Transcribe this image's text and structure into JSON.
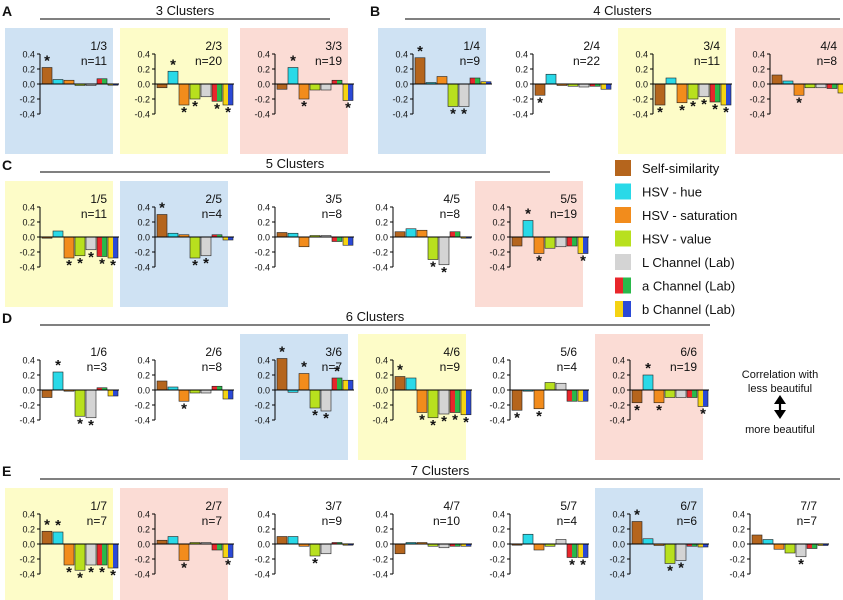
{
  "legend": {
    "items": [
      {
        "label": "Self-similarity",
        "color": "#b5651d",
        "color2": null
      },
      {
        "label": "HSV - hue",
        "color": "#29d9e8",
        "color2": null
      },
      {
        "label": "HSV - saturation",
        "color": "#f28c1c",
        "color2": null
      },
      {
        "label": "HSV - value",
        "color": "#b8e01e",
        "color2": null
      },
      {
        "label": "L Channel (Lab)",
        "color": "#d4d4d4",
        "color2": null
      },
      {
        "label": "a Channel (Lab)",
        "color": "#e8262b",
        "color2": "#2ab84a"
      },
      {
        "label": "b Channel (Lab)",
        "color": "#f5d312",
        "color2": "#2b49d6"
      }
    ],
    "correlation_title_line1": "Correlation with",
    "correlation_title_line2": "less beautiful",
    "correlation_bottom": "more beautiful"
  },
  "colors": {
    "blue_bg": "#cfe2f3",
    "yellow_bg": "#fdfcc8",
    "pink_bg": "#fbdcd5"
  },
  "chart_data": {
    "type": "bar",
    "categories": [
      "Self-similarity",
      "HSV - hue",
      "HSV - saturation",
      "HSV - value",
      "L Channel (Lab)",
      "a Channel (Lab)",
      "b Channel (Lab)"
    ],
    "ylim": [
      -0.4,
      0.4
    ],
    "yticks": [
      "0.4",
      "0.2",
      "0.0",
      "-0.2",
      "-0.4"
    ],
    "sections": [
      {
        "letter": "A",
        "title": "3 Clusters",
        "panels": [
          {
            "label": "1/3",
            "n": "n=11",
            "bg": "blue",
            "values": [
              0.22,
              0.06,
              0.05,
              -0.02,
              -0.02,
              0.07,
              0.0
            ],
            "stars": [
              true,
              false,
              false,
              false,
              false,
              false,
              false
            ]
          },
          {
            "label": "2/3",
            "n": "n=20",
            "bg": "yellow",
            "values": [
              -0.05,
              0.17,
              -0.28,
              -0.2,
              -0.17,
              -0.23,
              -0.28
            ],
            "stars": [
              false,
              true,
              true,
              true,
              false,
              true,
              true
            ]
          },
          {
            "label": "3/3",
            "n": "n=19",
            "bg": "pink",
            "values": [
              -0.07,
              0.22,
              -0.2,
              -0.08,
              -0.08,
              0.05,
              -0.22
            ],
            "stars": [
              false,
              true,
              true,
              false,
              false,
              false,
              true
            ]
          }
        ]
      },
      {
        "letter": "B",
        "title": "4 Clusters",
        "panels": [
          {
            "label": "1/4",
            "n": "n=9",
            "bg": "blue",
            "values": [
              0.35,
              0.02,
              0.1,
              -0.3,
              -0.3,
              0.08,
              0.03
            ],
            "stars": [
              true,
              false,
              false,
              true,
              true,
              false,
              false
            ]
          },
          {
            "label": "2/4",
            "n": "n=22",
            "bg": "none",
            "values": [
              -0.15,
              0.13,
              -0.02,
              -0.03,
              -0.04,
              -0.03,
              -0.07
            ],
            "stars": [
              true,
              false,
              false,
              false,
              false,
              false,
              false
            ]
          },
          {
            "label": "3/4",
            "n": "n=11",
            "bg": "yellow",
            "values": [
              -0.28,
              0.08,
              -0.25,
              -0.2,
              -0.17,
              -0.24,
              -0.28
            ],
            "stars": [
              true,
              false,
              true,
              true,
              true,
              true,
              true
            ]
          },
          {
            "label": "4/4",
            "n": "n=8",
            "bg": "pink",
            "values": [
              0.12,
              0.04,
              -0.15,
              -0.05,
              -0.05,
              -0.06,
              -0.12
            ],
            "stars": [
              false,
              false,
              true,
              false,
              false,
              false,
              false
            ]
          }
        ]
      },
      {
        "letter": "C",
        "title": "5 Clusters",
        "panels": [
          {
            "label": "1/5",
            "n": "n=11",
            "bg": "yellow",
            "values": [
              0.0,
              0.08,
              -0.28,
              -0.25,
              -0.17,
              -0.26,
              -0.28
            ],
            "stars": [
              false,
              false,
              true,
              true,
              true,
              true,
              true
            ]
          },
          {
            "label": "2/5",
            "n": "n=4",
            "bg": "blue",
            "values": [
              0.3,
              0.05,
              0.03,
              -0.28,
              -0.25,
              0.03,
              -0.04
            ],
            "stars": [
              true,
              false,
              false,
              true,
              true,
              false,
              false
            ]
          },
          {
            "label": "3/5",
            "n": "n=8",
            "bg": "none",
            "values": [
              0.06,
              0.05,
              -0.13,
              0.02,
              0.02,
              -0.06,
              -0.11
            ],
            "stars": [
              false,
              false,
              false,
              false,
              false,
              false,
              false
            ]
          },
          {
            "label": "4/5",
            "n": "n=8",
            "bg": "none",
            "values": [
              0.07,
              0.11,
              0.09,
              -0.3,
              -0.37,
              0.07,
              0.0
            ],
            "stars": [
              false,
              false,
              false,
              true,
              true,
              false,
              false
            ]
          },
          {
            "label": "5/5",
            "n": "n=19",
            "bg": "pink",
            "values": [
              -0.12,
              0.22,
              -0.22,
              -0.15,
              -0.13,
              -0.12,
              -0.22
            ],
            "stars": [
              false,
              true,
              true,
              false,
              false,
              false,
              true
            ]
          }
        ]
      },
      {
        "letter": "D",
        "title": "6 Clusters",
        "panels": [
          {
            "label": "1/6",
            "n": "n=3",
            "bg": "none",
            "values": [
              -0.1,
              0.24,
              0.0,
              -0.35,
              -0.37,
              0.03,
              -0.08
            ],
            "stars": [
              false,
              true,
              false,
              true,
              true,
              false,
              false
            ]
          },
          {
            "label": "2/6",
            "n": "n=8",
            "bg": "none",
            "values": [
              0.12,
              0.04,
              -0.15,
              -0.04,
              -0.04,
              0.05,
              -0.12
            ],
            "stars": [
              false,
              false,
              true,
              false,
              false,
              false,
              false
            ]
          },
          {
            "label": "3/6",
            "n": "n=7",
            "bg": "blue",
            "values": [
              0.42,
              -0.03,
              0.22,
              -0.24,
              -0.28,
              0.16,
              0.13
            ],
            "stars": [
              true,
              false,
              true,
              true,
              true,
              true,
              false
            ]
          },
          {
            "label": "4/6",
            "n": "n=9",
            "bg": "yellow",
            "values": [
              0.18,
              0.16,
              -0.3,
              -0.37,
              -0.32,
              -0.3,
              -0.33
            ],
            "stars": [
              true,
              false,
              true,
              true,
              true,
              true,
              true
            ]
          },
          {
            "label": "5/6",
            "n": "n=4",
            "bg": "none",
            "values": [
              -0.27,
              0.0,
              -0.25,
              0.1,
              0.09,
              -0.15,
              -0.15
            ],
            "stars": [
              true,
              false,
              true,
              false,
              false,
              false,
              false
            ]
          },
          {
            "label": "6/6",
            "n": "n=19",
            "bg": "pink",
            "values": [
              -0.17,
              0.2,
              -0.17,
              -0.1,
              -0.1,
              -0.1,
              -0.22
            ],
            "stars": [
              true,
              true,
              true,
              false,
              false,
              false,
              true
            ]
          }
        ]
      },
      {
        "letter": "E",
        "title": "7 Clusters",
        "panels": [
          {
            "label": "1/7",
            "n": "n=7",
            "bg": "yellow",
            "values": [
              0.17,
              0.16,
              -0.28,
              -0.35,
              -0.28,
              -0.28,
              -0.32
            ],
            "stars": [
              true,
              true,
              true,
              true,
              true,
              true,
              true
            ]
          },
          {
            "label": "2/7",
            "n": "n=7",
            "bg": "pink",
            "values": [
              0.05,
              0.1,
              -0.22,
              0.02,
              0.02,
              -0.08,
              -0.18
            ],
            "stars": [
              false,
              false,
              true,
              false,
              false,
              false,
              true
            ]
          },
          {
            "label": "3/7",
            "n": "n=9",
            "bg": "none",
            "values": [
              0.1,
              0.1,
              -0.03,
              -0.16,
              -0.13,
              0.02,
              0.0
            ],
            "stars": [
              false,
              false,
              false,
              true,
              false,
              false,
              false
            ]
          },
          {
            "label": "4/7",
            "n": "n=10",
            "bg": "none",
            "values": [
              -0.13,
              0.02,
              0.02,
              -0.03,
              -0.05,
              -0.03,
              -0.03
            ],
            "stars": [
              false,
              false,
              false,
              false,
              false,
              false,
              false
            ]
          },
          {
            "label": "5/7",
            "n": "n=4",
            "bg": "none",
            "values": [
              0.0,
              0.13,
              -0.08,
              -0.03,
              0.06,
              -0.18,
              -0.18
            ],
            "stars": [
              false,
              false,
              false,
              false,
              false,
              true,
              true
            ]
          },
          {
            "label": "6/7",
            "n": "n=6",
            "bg": "blue",
            "values": [
              0.3,
              0.07,
              -0.02,
              -0.26,
              -0.22,
              -0.03,
              -0.04
            ],
            "stars": [
              true,
              false,
              false,
              true,
              true,
              false,
              false
            ]
          },
          {
            "label": "7/7",
            "n": "n=7",
            "bg": "none",
            "values": [
              0.12,
              0.06,
              -0.07,
              -0.12,
              -0.17,
              -0.06,
              -0.02
            ],
            "stars": [
              false,
              false,
              false,
              false,
              true,
              false,
              false
            ]
          }
        ]
      }
    ]
  }
}
